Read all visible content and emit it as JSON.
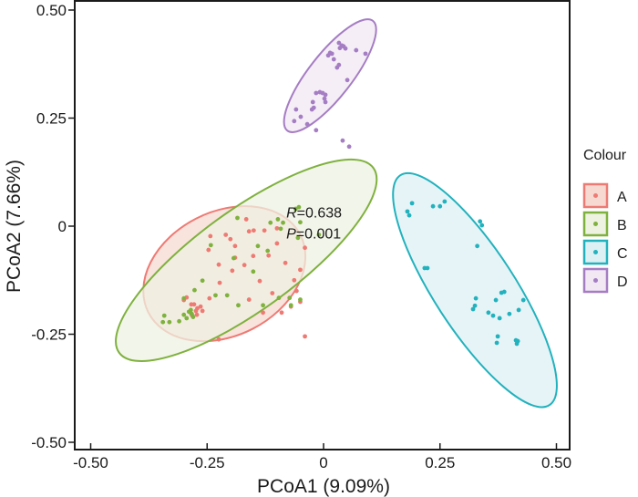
{
  "chart_data": {
    "type": "scatter",
    "title": "",
    "xlabel": "PCoA1 (9.09%)",
    "ylabel": "PCoA2 (7.66%)",
    "xlim": [
      -0.54,
      0.52
    ],
    "ylim": [
      -0.505,
      0.52
    ],
    "xticks": [
      -0.5,
      -0.25,
      0,
      0.25,
      0.5
    ],
    "xtick_labels": [
      "-0.50",
      "-0.25",
      "0",
      "0.25",
      "0.50"
    ],
    "yticks": [
      -0.5,
      -0.25,
      0,
      0.25,
      0.5
    ],
    "ytick_labels": [
      "-0.50",
      "-0.25",
      "0",
      "0.25",
      "0.50"
    ],
    "grid": false,
    "legend": {
      "title": "Colour",
      "position": "right"
    },
    "annotation": {
      "r_label": "R",
      "r_value": "=0.638",
      "p_label": "P",
      "p_value": "=0.001",
      "x": -0.08,
      "y": 0.02
    },
    "series": [
      {
        "name": "A",
        "color": "#EE7A74",
        "fill": "#F7D9D2",
        "ellipse": {
          "cx": -0.213,
          "cy": -0.11,
          "rx": 0.19,
          "ry": 0.138,
          "angle": -27
        },
        "points": [
          [
            -0.166,
            0.016
          ],
          [
            -0.15,
            -0.01
          ],
          [
            -0.127,
            -0.01
          ],
          [
            -0.19,
            -0.046
          ],
          [
            -0.151,
            -0.069
          ],
          [
            -0.16,
            -0.012
          ],
          [
            -0.21,
            -0.02
          ],
          [
            -0.225,
            -0.089
          ],
          [
            -0.243,
            -0.023
          ],
          [
            -0.247,
            -0.055
          ],
          [
            -0.118,
            -0.068
          ],
          [
            -0.1,
            -0.04
          ],
          [
            -0.137,
            -0.127
          ],
          [
            -0.17,
            -0.09
          ],
          [
            -0.196,
            -0.103
          ],
          [
            -0.082,
            -0.085
          ],
          [
            -0.05,
            -0.101
          ],
          [
            -0.04,
            -0.05
          ],
          [
            -0.058,
            -0.15
          ],
          [
            -0.11,
            -0.155
          ],
          [
            -0.13,
            -0.2
          ],
          [
            -0.16,
            -0.17
          ],
          [
            -0.09,
            -0.2
          ],
          [
            -0.07,
            -0.186
          ],
          [
            -0.063,
            -0.125
          ],
          [
            -0.3,
            -0.171
          ],
          [
            -0.294,
            -0.165
          ],
          [
            -0.284,
            -0.181
          ],
          [
            -0.278,
            -0.181
          ],
          [
            -0.274,
            -0.196
          ],
          [
            -0.272,
            -0.205
          ],
          [
            -0.264,
            -0.186
          ],
          [
            -0.26,
            -0.196
          ],
          [
            -0.271,
            -0.19
          ],
          [
            -0.284,
            -0.203
          ],
          [
            -0.282,
            -0.207
          ],
          [
            -0.245,
            -0.167
          ],
          [
            -0.223,
            -0.131
          ],
          [
            -0.225,
            -0.262
          ],
          [
            -0.19,
            -0.073
          ],
          [
            -0.2,
            -0.03
          ],
          [
            -0.1,
            -0.005
          ],
          [
            -0.05,
            -0.175
          ],
          [
            -0.04,
            -0.255
          ]
        ]
      },
      {
        "name": "B",
        "color": "#7FB13E",
        "fill": "#EDF2E1",
        "ellipse": {
          "cx": -0.166,
          "cy": -0.079,
          "rx": 0.35,
          "ry": 0.111,
          "angle": -36
        },
        "points": [
          [
            -0.185,
            0.019
          ],
          [
            -0.114,
            0.008
          ],
          [
            -0.098,
            0.016
          ],
          [
            -0.092,
            -0.006
          ],
          [
            -0.087,
            0.008
          ],
          [
            -0.053,
            0.044
          ],
          [
            -0.05,
            0.009
          ],
          [
            -0.055,
            -0.027
          ],
          [
            -0.12,
            -0.057
          ],
          [
            -0.141,
            -0.046
          ],
          [
            -0.242,
            -0.044
          ],
          [
            -0.193,
            -0.074
          ],
          [
            -0.26,
            -0.126
          ],
          [
            -0.232,
            -0.16
          ],
          [
            -0.151,
            -0.105
          ],
          [
            -0.13,
            -0.183
          ],
          [
            -0.183,
            -0.183
          ],
          [
            -0.073,
            -0.166
          ],
          [
            -0.096,
            -0.166
          ],
          [
            -0.07,
            -0.183
          ],
          [
            -0.3,
            -0.167
          ],
          [
            -0.277,
            -0.148
          ],
          [
            -0.31,
            -0.22
          ],
          [
            -0.3,
            -0.205
          ],
          [
            -0.283,
            -0.203
          ],
          [
            -0.285,
            -0.194
          ],
          [
            -0.28,
            -0.21
          ],
          [
            -0.289,
            -0.198
          ],
          [
            -0.294,
            -0.213
          ],
          [
            -0.331,
            -0.222
          ],
          [
            -0.345,
            -0.222
          ],
          [
            -0.342,
            -0.207
          ],
          [
            -0.207,
            -0.16
          ],
          [
            -0.05,
            -0.17
          ],
          [
            -0.01,
            -0.02
          ],
          [
            -0.06,
            0.04
          ]
        ]
      },
      {
        "name": "C",
        "color": "#22B2BD",
        "fill": "#DDF0F4",
        "ellipse": {
          "cx": 0.325,
          "cy": -0.148,
          "rx": 0.305,
          "ry": 0.09,
          "angle": 57
        },
        "points": [
          [
            0.19,
            0.053
          ],
          [
            0.18,
            0.034
          ],
          [
            0.184,
            0.025
          ],
          [
            0.235,
            0.046
          ],
          [
            0.25,
            0.046
          ],
          [
            0.26,
            0.057
          ],
          [
            0.336,
            0.011
          ],
          [
            0.34,
            0.002
          ],
          [
            0.33,
            -0.046
          ],
          [
            0.217,
            -0.097
          ],
          [
            0.223,
            -0.097
          ],
          [
            0.327,
            -0.167
          ],
          [
            0.325,
            -0.184
          ],
          [
            0.321,
            -0.192
          ],
          [
            0.37,
            -0.171
          ],
          [
            0.382,
            -0.154
          ],
          [
            0.388,
            -0.152
          ],
          [
            0.429,
            -0.171
          ],
          [
            0.419,
            -0.194
          ],
          [
            0.354,
            -0.2
          ],
          [
            0.364,
            -0.207
          ],
          [
            0.378,
            -0.213
          ],
          [
            0.399,
            -0.203
          ],
          [
            0.374,
            -0.255
          ],
          [
            0.372,
            -0.27
          ],
          [
            0.413,
            -0.264
          ],
          [
            0.415,
            -0.272
          ],
          [
            0.417,
            -0.266
          ]
        ]
      },
      {
        "name": "D",
        "color": "#A57DC3",
        "fill": "#F1E8F4",
        "ellipse": {
          "cx": 0.014,
          "cy": 0.348,
          "rx": 0.155,
          "ry": 0.048,
          "angle": -52
        },
        "points": [
          [
            0.033,
            0.424
          ],
          [
            0.039,
            0.418
          ],
          [
            0.043,
            0.416
          ],
          [
            0.047,
            0.411
          ],
          [
            0.035,
            0.412
          ],
          [
            0.01,
            0.395
          ],
          [
            0.014,
            0.401
          ],
          [
            0.018,
            0.399
          ],
          [
            0.022,
            0.386
          ],
          [
            0.029,
            0.367
          ],
          [
            0.033,
            0.373
          ],
          [
            0.051,
            0.338
          ],
          [
            0.09,
            0.399
          ],
          [
            0.07,
            0.407
          ],
          [
            -0.016,
            0.308
          ],
          [
            -0.008,
            0.31
          ],
          [
            -0.002,
            0.308
          ],
          [
            0.004,
            0.304
          ],
          [
            0.002,
            0.295
          ],
          [
            0.004,
            0.287
          ],
          [
            -0.023,
            0.287
          ],
          [
            -0.021,
            0.274
          ],
          [
            -0.025,
            0.27
          ],
          [
            -0.059,
            0.27
          ],
          [
            -0.063,
            0.243
          ],
          [
            -0.049,
            0.253
          ],
          [
            -0.035,
            0.236
          ],
          [
            -0.016,
            0.222
          ],
          [
            0.041,
            0.198
          ],
          [
            0.055,
            0.184
          ]
        ]
      }
    ]
  }
}
